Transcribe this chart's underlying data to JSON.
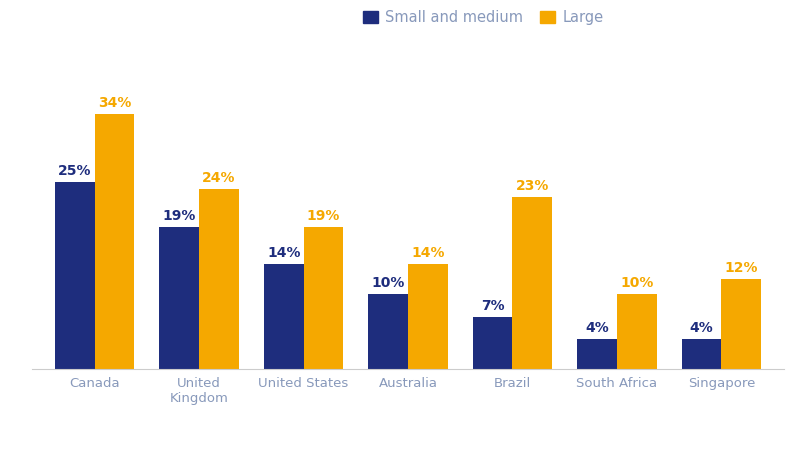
{
  "categories": [
    "Canada",
    "United\nKingdom",
    "United States",
    "Australia",
    "Brazil",
    "South Africa",
    "Singapore"
  ],
  "small_medium": [
    25,
    19,
    14,
    10,
    7,
    4,
    4
  ],
  "large": [
    34,
    24,
    19,
    14,
    23,
    10,
    12
  ],
  "color_small": "#1e2d7d",
  "color_large": "#f5a800",
  "legend_small": "Small and medium",
  "legend_large": "Large",
  "bar_width": 0.38,
  "ylim": [
    0,
    42
  ],
  "background_color": "#ffffff",
  "label_fontsize": 10,
  "tick_fontsize": 9.5,
  "tick_color": "#8899bb",
  "legend_fontsize": 10.5,
  "legend_text_color": "#8899bb"
}
